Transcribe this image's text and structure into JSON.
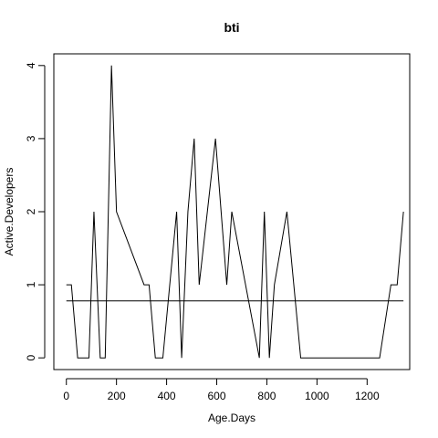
{
  "chart_data": {
    "type": "line",
    "title": "bti",
    "xlabel": "Age.Days",
    "ylabel": "Active.Developers",
    "xlim": [
      -50,
      1370
    ],
    "ylim": [
      -0.16,
      4.16
    ],
    "x_ticks": [
      0,
      200,
      400,
      600,
      800,
      1000,
      1200
    ],
    "y_ticks": [
      0,
      1,
      2,
      3,
      4
    ],
    "grid": false,
    "legend": "none",
    "line_color": "#000000",
    "series": [
      {
        "x": [
          0,
          20,
          45,
          90,
          110,
          135,
          155,
          180,
          200,
          310,
          330,
          355,
          385,
          440,
          460,
          485,
          510,
          530,
          595,
          640,
          660,
          770,
          790,
          810,
          830,
          880,
          935,
          1250,
          1295,
          1320,
          1345
        ],
        "y": [
          1,
          1,
          0,
          0,
          2,
          0,
          0,
          4,
          2,
          1,
          1,
          0,
          0,
          2,
          0,
          2,
          3,
          1,
          3,
          1,
          2,
          0,
          2,
          0,
          1,
          2,
          0,
          0,
          1,
          1,
          2
        ]
      }
    ],
    "reference_line": {
      "y": 0.78,
      "x_from": 0,
      "x_to": 1345
    }
  }
}
